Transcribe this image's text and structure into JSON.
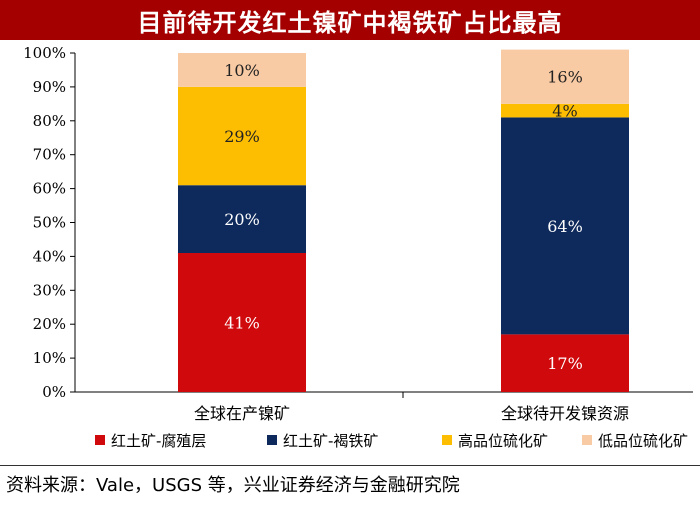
{
  "title": "目前待开发红土镍矿中褐铁矿占比最高",
  "source": "资料来源：Vale，USGS 等，兴业证券经济与金融研究院",
  "colors": {
    "title_bg": "#a50000",
    "saprolite": "#d0090c",
    "limonite": "#0e2a5c",
    "high_grade_sulfide": "#fdbd00",
    "low_grade_sulfide": "#f9cba4"
  },
  "chart_data": {
    "type": "bar",
    "stacked": true,
    "categories": [
      "全球在产镍矿",
      "全球待开发镍资源"
    ],
    "series": [
      {
        "name": "红土矿-腐殖层",
        "values": [
          41,
          17
        ],
        "labels": [
          "41%",
          "17%"
        ],
        "color": "#d0090c"
      },
      {
        "name": "红土矿-褐铁矿",
        "values": [
          20,
          64
        ],
        "labels": [
          "20%",
          "64%"
        ],
        "color": "#0e2a5c"
      },
      {
        "name": "高品位硫化矿",
        "values": [
          29,
          4
        ],
        "labels": [
          "29%",
          "4%"
        ],
        "color": "#fdbd00"
      },
      {
        "name": "低品位硫化矿",
        "values": [
          10,
          16
        ],
        "labels": [
          "10%",
          "16%"
        ],
        "color": "#f9cba4"
      }
    ],
    "ylim": [
      0,
      100
    ],
    "yticks": [
      "0%",
      "10%",
      "20%",
      "30%",
      "40%",
      "50%",
      "60%",
      "70%",
      "80%",
      "90%",
      "100%"
    ],
    "grid": false,
    "legend": "bottom"
  }
}
